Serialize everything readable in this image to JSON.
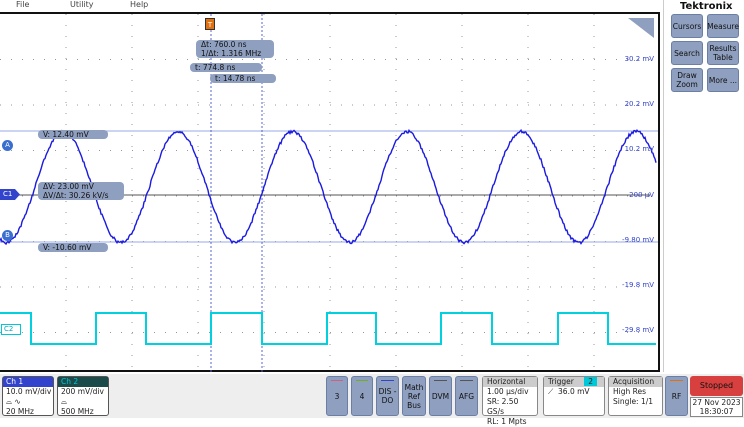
{
  "menu": {
    "file": "File",
    "utility": "Utility",
    "help": "Help"
  },
  "brand": "Tektronix",
  "right_buttons": [
    {
      "label": "Cursors"
    },
    {
      "label": "Measure"
    },
    {
      "label": "Search"
    },
    {
      "label": "Results Table"
    },
    {
      "label": "Draw Zoom"
    },
    {
      "label": "More ..."
    }
  ],
  "readouts": {
    "dt": "Δt:      760.0 ns",
    "inv_dt": "1/Δt: 1.316 MHz",
    "t1": "t:      774.8 ns",
    "t2": "t:      14.78 ns",
    "va": "V:   12.40 mV",
    "dv": "ΔV:          23.00 mV",
    "dvdt": "ΔV/Δt: 30.26 kV/s",
    "vb": "V:   -10.60 mV"
  },
  "markers": {
    "cursor_a": "A",
    "cursor_b": "B",
    "ch1": "C1",
    "ch2": "C2",
    "trigger": "T"
  },
  "y_labels": [
    "30.2 mV",
    "20.2 mV",
    "10.2 mV",
    "200 µV",
    "-9.80 mV",
    "-19.8 mV",
    "-29.8 mV"
  ],
  "ch1": {
    "title": "Ch 1",
    "scale": "10.0 mV/div",
    "bw": "20 MHz",
    "color": "#3344cc"
  },
  "ch2": {
    "title": "Ch 2",
    "scale": "200 mV/div",
    "bw": "500 MHz",
    "color": "#00c8d8"
  },
  "bottom_buttons": [
    "3",
    "4",
    "DIS -DO",
    "Math Ref Bus",
    "DVM",
    "AFG"
  ],
  "horizontal": {
    "title": "Horizontal",
    "scale": "1.00 µs/div",
    "sr": "SR: 2.50 GS/s",
    "rl": "RL: 1 Mpts"
  },
  "trigger": {
    "title": "Trigger",
    "source": "2",
    "level": "36.0 mV"
  },
  "acquisition": {
    "title": "Acquisition",
    "mode": "High Res",
    "single": "Single: 1/1"
  },
  "rf": "RF",
  "status": "Stopped",
  "date": "27 Nov 2023",
  "time": "18:30:07"
}
